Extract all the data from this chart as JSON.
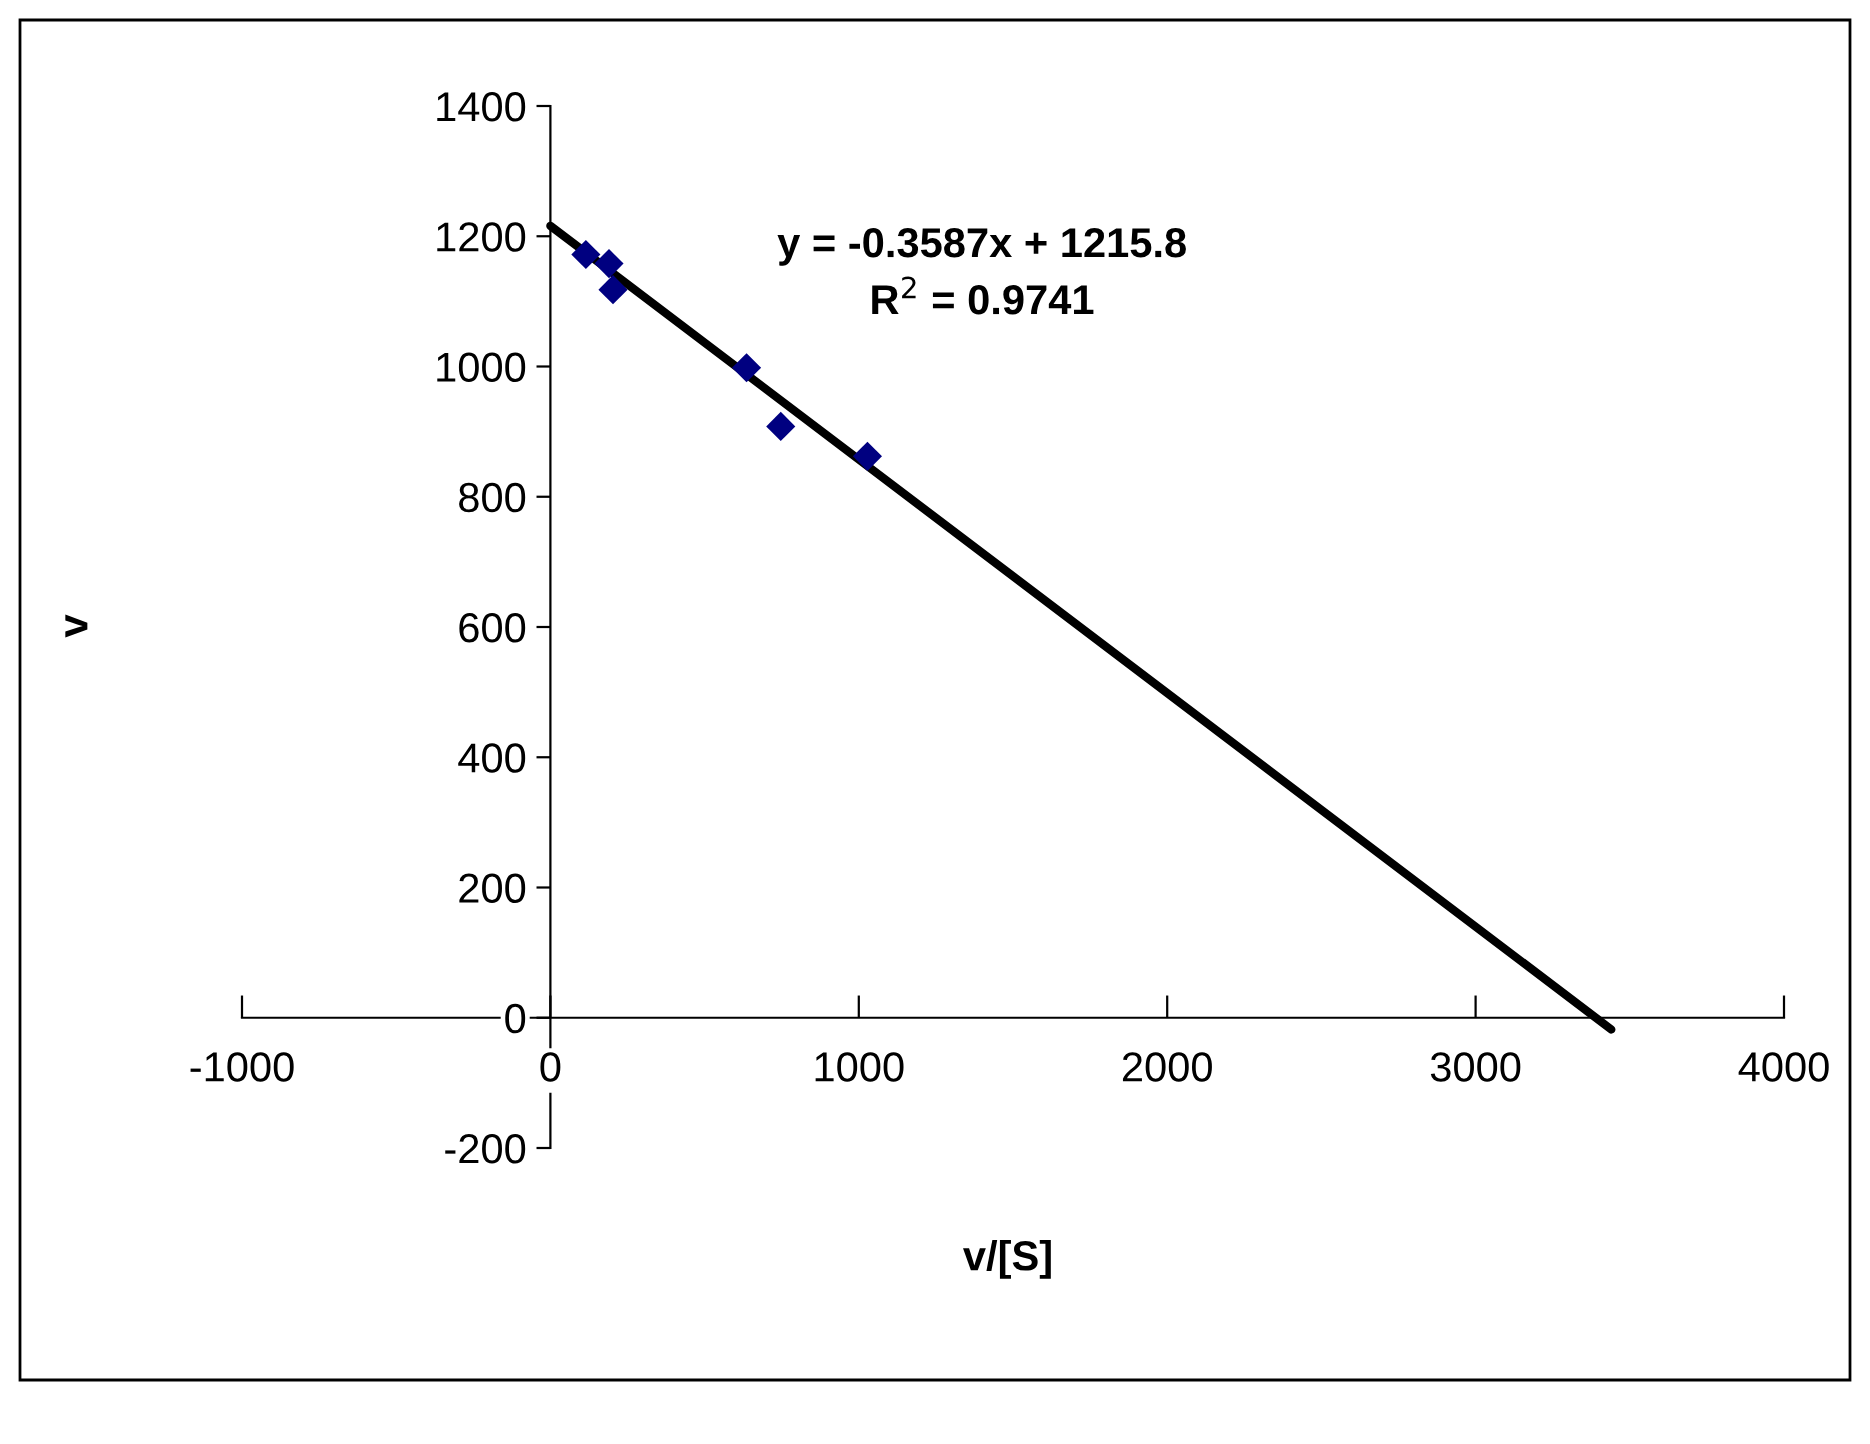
{
  "chart_data": {
    "type": "scatter",
    "xlabel": "v/[S]",
    "ylabel": "v",
    "series": [
      {
        "color": "#000080",
        "marker": "diamond",
        "x": [
          115,
          190,
          203,
          636,
          747,
          1028
        ],
        "values": [
          1172,
          1158,
          1118,
          998,
          908,
          862
        ]
      },
      {
        "type": "line",
        "color": "#000000",
        "marker": "none",
        "line_style": "solid",
        "x": [
          0,
          3440
        ],
        "values": [
          1216,
          -18
        ]
      }
    ],
    "annotations": [
      "y = -0.3587x + 1215.8",
      "R$^{2}$ = 0.9741"
    ],
    "xlim": [
      -1000,
      4000
    ],
    "xticks": [
      -1000,
      0,
      1000,
      2000,
      3000,
      4000
    ],
    "ylim": [
      -200,
      1400
    ],
    "yticks": [
      -200,
      0,
      200,
      400,
      600,
      800,
      1000,
      1200,
      1400
    ],
    "grid": false,
    "legend": false
  }
}
